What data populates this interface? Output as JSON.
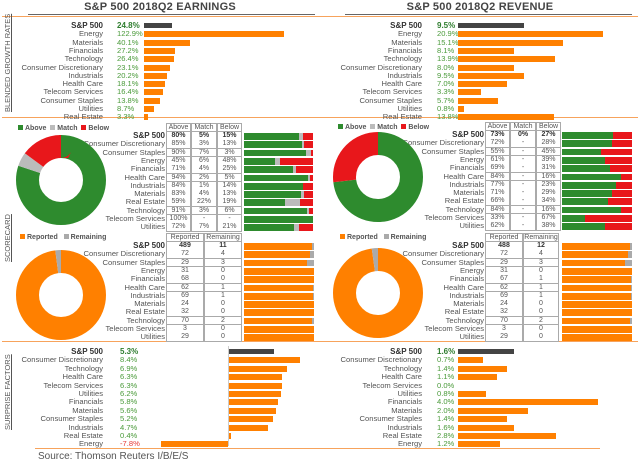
{
  "titles": {
    "earnings": "S&P 500 2018Q2 EARNINGS",
    "revenue": "S&P 500 2018Q2 REVENUE"
  },
  "section_labels": {
    "growth": "BLENDED GROWTH RATES",
    "scorecard": "SCORECARD",
    "surprise": "SURPRISE FACTORS"
  },
  "source": "Source: Thomson Reuters I/B/E/S",
  "colors": {
    "bar": "#ff8000",
    "sp_bar": "#444444",
    "above": "#2e8b2e",
    "match": "#bbbbbb",
    "below": "#e8171b",
    "reported": "#ff8000",
    "remaining": "#aaaaaa"
  },
  "legends": {
    "above": "Above",
    "match": "Match",
    "below": "Below",
    "reported": "Reported",
    "remaining": "Remaining"
  },
  "table_headers": {
    "above": "Above",
    "match": "Match",
    "below": "Below",
    "reported": "Reported",
    "remaining": "Remaining"
  },
  "chart_data": [
    {
      "type": "bar",
      "title": "S&P 500 2018Q2 EARNINGS - BLENDED GROWTH RATES",
      "unit": "%",
      "categories": [
        "S&P 500",
        "Energy",
        "Materials",
        "Financials",
        "Technology",
        "Consumer Discretionary",
        "Industrials",
        "Health Care",
        "Telecom Services",
        "Consumer Staples",
        "Utilities",
        "Real Estate"
      ],
      "values": [
        24.8,
        122.9,
        40.1,
        27.2,
        26.4,
        23.1,
        20.2,
        18.1,
        16.4,
        13.8,
        8.7,
        3.3
      ],
      "labels": [
        "24.8%",
        "122.9%",
        "40.1%",
        "27.2%",
        "26.4%",
        "23.1%",
        "20.2%",
        "18.1%",
        "16.4%",
        "13.8%",
        "8.7%",
        "3.3%"
      ]
    },
    {
      "type": "bar",
      "title": "S&P 500 2018Q2 REVENUE - BLENDED GROWTH RATES",
      "unit": "%",
      "categories": [
        "S&P 500",
        "Energy",
        "Materials",
        "Financials",
        "Technology",
        "Consumer Discretionary",
        "Industrials",
        "Health Care",
        "Telecom Services",
        "Consumer Staples",
        "Utilities",
        "Real Estate"
      ],
      "values": [
        9.5,
        20.9,
        15.1,
        8.1,
        13.9,
        8.0,
        9.5,
        7.0,
        3.3,
        5.7,
        0.8,
        13.8
      ],
      "labels": [
        "9.5%",
        "20.9%",
        "15.1%",
        "8.1%",
        "13.9%",
        "8.0%",
        "9.5%",
        "7.0%",
        "3.3%",
        "5.7%",
        "0.8%",
        "13.8%"
      ]
    },
    {
      "type": "table",
      "title": "EARNINGS SCORECARD",
      "legend_placement": "top-left",
      "categories": [
        "S&P 500",
        "Consumer Discretionary",
        "Consumer Staples",
        "Energy",
        "Financials",
        "Health Care",
        "Industrials",
        "Materials",
        "Real Estate",
        "Technology",
        "Telecom Services",
        "Utilities"
      ],
      "above": [
        80,
        85,
        90,
        45,
        71,
        94,
        84,
        83,
        59,
        91,
        100,
        72
      ],
      "match": [
        5,
        3,
        7,
        6,
        4,
        2,
        1,
        4,
        22,
        3,
        0,
        7
      ],
      "below": [
        15,
        13,
        3,
        48,
        25,
        5,
        14,
        13,
        19,
        6,
        0,
        21
      ],
      "above_text": [
        "80%",
        "85%",
        "90%",
        "45%",
        "71%",
        "94%",
        "84%",
        "83%",
        "59%",
        "91%",
        "100%",
        "72%"
      ],
      "match_text": [
        "5%",
        "3%",
        "7%",
        "6%",
        "4%",
        "2%",
        "1%",
        "4%",
        "22%",
        "3%",
        "-",
        "7%"
      ],
      "below_text": [
        "15%",
        "13%",
        "3%",
        "48%",
        "25%",
        "5%",
        "14%",
        "13%",
        "19%",
        "6%",
        "-",
        "21%"
      ]
    },
    {
      "type": "table",
      "title": "REVENUE SCORECARD",
      "legend_placement": "top-left",
      "categories": [
        "S&P 500",
        "Consumer Discretionary",
        "Consumer Staples",
        "Energy",
        "Financials",
        "Health Care",
        "Industrials",
        "Materials",
        "Real Estate",
        "Technology",
        "Telecom Services",
        "Utilities"
      ],
      "above": [
        73,
        72,
        55,
        61,
        69,
        84,
        77,
        71,
        66,
        84,
        33,
        62
      ],
      "match": [
        0,
        0,
        0,
        0,
        0,
        0,
        0,
        0,
        0,
        0,
        0,
        0
      ],
      "below": [
        27,
        28,
        45,
        39,
        31,
        16,
        23,
        29,
        34,
        16,
        67,
        38
      ],
      "above_text": [
        "73%",
        "72%",
        "55%",
        "61%",
        "69%",
        "84%",
        "77%",
        "71%",
        "66%",
        "84%",
        "33%",
        "62%"
      ],
      "match_text": [
        "0%",
        "-",
        "-",
        "-",
        "-",
        "-",
        "-",
        "-",
        "-",
        "-",
        "-",
        "-"
      ],
      "below_text": [
        "27%",
        "28%",
        "45%",
        "39%",
        "31%",
        "16%",
        "23%",
        "29%",
        "34%",
        "16%",
        "67%",
        "38%"
      ]
    },
    {
      "type": "table",
      "title": "EARNINGS REPORTED",
      "legend_placement": "top-left",
      "categories": [
        "S&P 500",
        "Consumer Discretionary",
        "Consumer Staples",
        "Energy",
        "Financials",
        "Health Care",
        "Industrials",
        "Materials",
        "Real Estate",
        "Technology",
        "Telecom Services",
        "Utilities"
      ],
      "reported": [
        489,
        72,
        29,
        31,
        68,
        62,
        69,
        24,
        32,
        70,
        3,
        29
      ],
      "remaining": [
        11,
        4,
        3,
        0,
        0,
        1,
        1,
        0,
        0,
        2,
        0,
        0
      ]
    },
    {
      "type": "table",
      "title": "REVENUE REPORTED",
      "legend_placement": "top-left",
      "categories": [
        "S&P 500",
        "Consumer Discretionary",
        "Consumer Staples",
        "Energy",
        "Financials",
        "Health Care",
        "Industrials",
        "Materials",
        "Real Estate",
        "Technology",
        "Telecom Services",
        "Utilities"
      ],
      "reported": [
        488,
        72,
        29,
        31,
        67,
        62,
        69,
        24,
        32,
        70,
        3,
        29
      ],
      "remaining": [
        12,
        4,
        3,
        0,
        1,
        1,
        1,
        0,
        0,
        2,
        0,
        0
      ]
    },
    {
      "type": "bar",
      "title": "EARNINGS SURPRISE FACTORS",
      "unit": "%",
      "categories": [
        "S&P 500",
        "Consumer Discretionary",
        "Technology",
        "Health Care",
        "Telecom Services",
        "Utilities",
        "Financials",
        "Materials",
        "Consumer Staples",
        "Industrials",
        "Real Estate",
        "Energy"
      ],
      "values": [
        5.3,
        8.4,
        6.9,
        6.3,
        6.3,
        6.2,
        5.8,
        5.6,
        5.2,
        4.7,
        0.4,
        -7.8
      ],
      "labels": [
        "5.3%",
        "8.4%",
        "6.9%",
        "6.3%",
        "6.3%",
        "6.2%",
        "5.8%",
        "5.6%",
        "5.2%",
        "4.7%",
        "0.4%",
        "-7.8%"
      ]
    },
    {
      "type": "bar",
      "title": "REVENUE SURPRISE FACTORS",
      "unit": "%",
      "categories": [
        "S&P 500",
        "Consumer Discretionary",
        "Technology",
        "Health Care",
        "Telecom Services",
        "Utilities",
        "Financials",
        "Materials",
        "Consumer Staples",
        "Industrials",
        "Real Estate",
        "Energy"
      ],
      "values": [
        1.6,
        0.7,
        1.4,
        1.1,
        0.0,
        0.8,
        4.0,
        2.0,
        1.4,
        1.6,
        2.8,
        1.2
      ],
      "labels": [
        "1.6%",
        "0.7%",
        "1.4%",
        "1.1%",
        "0.0%",
        "0.8%",
        "4.0%",
        "2.0%",
        "1.4%",
        "1.6%",
        "2.8%",
        "1.2%"
      ]
    }
  ]
}
